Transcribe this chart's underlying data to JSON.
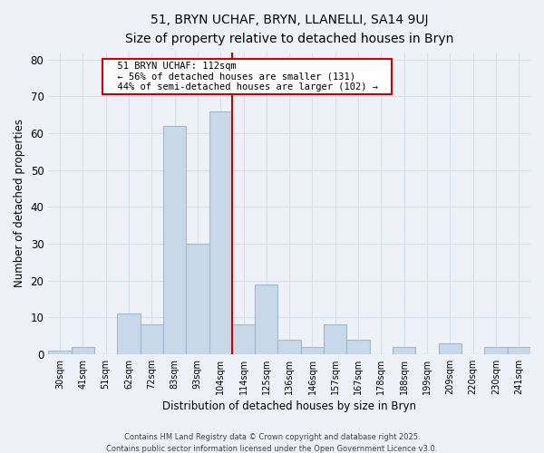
{
  "title": "51, BRYN UCHAF, BRYN, LLANELLI, SA14 9UJ",
  "subtitle": "Size of property relative to detached houses in Bryn",
  "xlabel": "Distribution of detached houses by size in Bryn",
  "ylabel": "Number of detached properties",
  "bar_labels": [
    "30sqm",
    "41sqm",
    "51sqm",
    "62sqm",
    "72sqm",
    "83sqm",
    "93sqm",
    "104sqm",
    "114sqm",
    "125sqm",
    "136sqm",
    "146sqm",
    "157sqm",
    "167sqm",
    "178sqm",
    "188sqm",
    "199sqm",
    "209sqm",
    "220sqm",
    "230sqm",
    "241sqm"
  ],
  "bar_values": [
    1,
    2,
    0,
    11,
    8,
    62,
    30,
    66,
    8,
    19,
    4,
    2,
    8,
    4,
    0,
    2,
    0,
    3,
    0,
    2,
    2
  ],
  "bar_color": "#c8d8e8",
  "bar_edge_color": "#a0b8d0",
  "vline_index": 8,
  "vline_color": "#cc0000",
  "ylim": [
    0,
    82
  ],
  "yticks": [
    0,
    10,
    20,
    30,
    40,
    50,
    60,
    70,
    80
  ],
  "annotation_title": "51 BRYN UCHAF: 112sqm",
  "annotation_line1": "← 56% of detached houses are smaller (131)",
  "annotation_line2": "44% of semi-detached houses are larger (102) →",
  "annotation_box_color": "#ffffff",
  "annotation_border_color": "#cc0000",
  "grid_color": "#d8e0ec",
  "bg_color": "#eef2f8",
  "footer1": "Contains HM Land Registry data © Crown copyright and database right 2025.",
  "footer2": "Contains public sector information licensed under the Open Government Licence v3.0."
}
